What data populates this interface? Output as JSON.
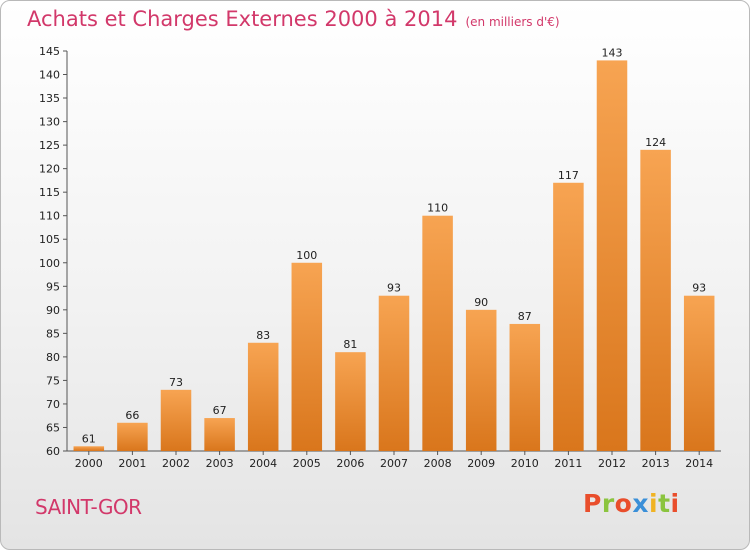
{
  "header": {
    "title": "Achats et Charges Externes 2000 à 2014",
    "unit": "(en milliers d'€)"
  },
  "footer": {
    "city": "SAINT-GOR",
    "brand": "Proxiti"
  },
  "colors": {
    "accent": "#d2386a",
    "bar_top": "#f7a452",
    "bar_bottom": "#d9761c",
    "brand_letters": [
      "#e94e2c",
      "#8bc43f",
      "#e94e2c",
      "#3a8fd8",
      "#f0b323",
      "#8bc43f",
      "#e94e2c"
    ]
  },
  "chart_data": {
    "type": "bar",
    "title": "Achats et Charges Externes 2000 à 2014",
    "subtitle": "(en milliers d'€)",
    "xlabel": "",
    "ylabel": "",
    "categories": [
      "2000",
      "2001",
      "2002",
      "2003",
      "2004",
      "2005",
      "2006",
      "2007",
      "2008",
      "2009",
      "2010",
      "2011",
      "2012",
      "2013",
      "2014"
    ],
    "values": [
      61,
      66,
      73,
      67,
      83,
      100,
      81,
      93,
      110,
      90,
      87,
      117,
      143,
      124,
      93
    ],
    "ylim": [
      60,
      145
    ],
    "yticks": [
      60,
      65,
      70,
      75,
      80,
      85,
      90,
      95,
      100,
      105,
      110,
      115,
      120,
      125,
      130,
      135,
      140,
      145
    ],
    "grid": false,
    "legend": "none"
  }
}
